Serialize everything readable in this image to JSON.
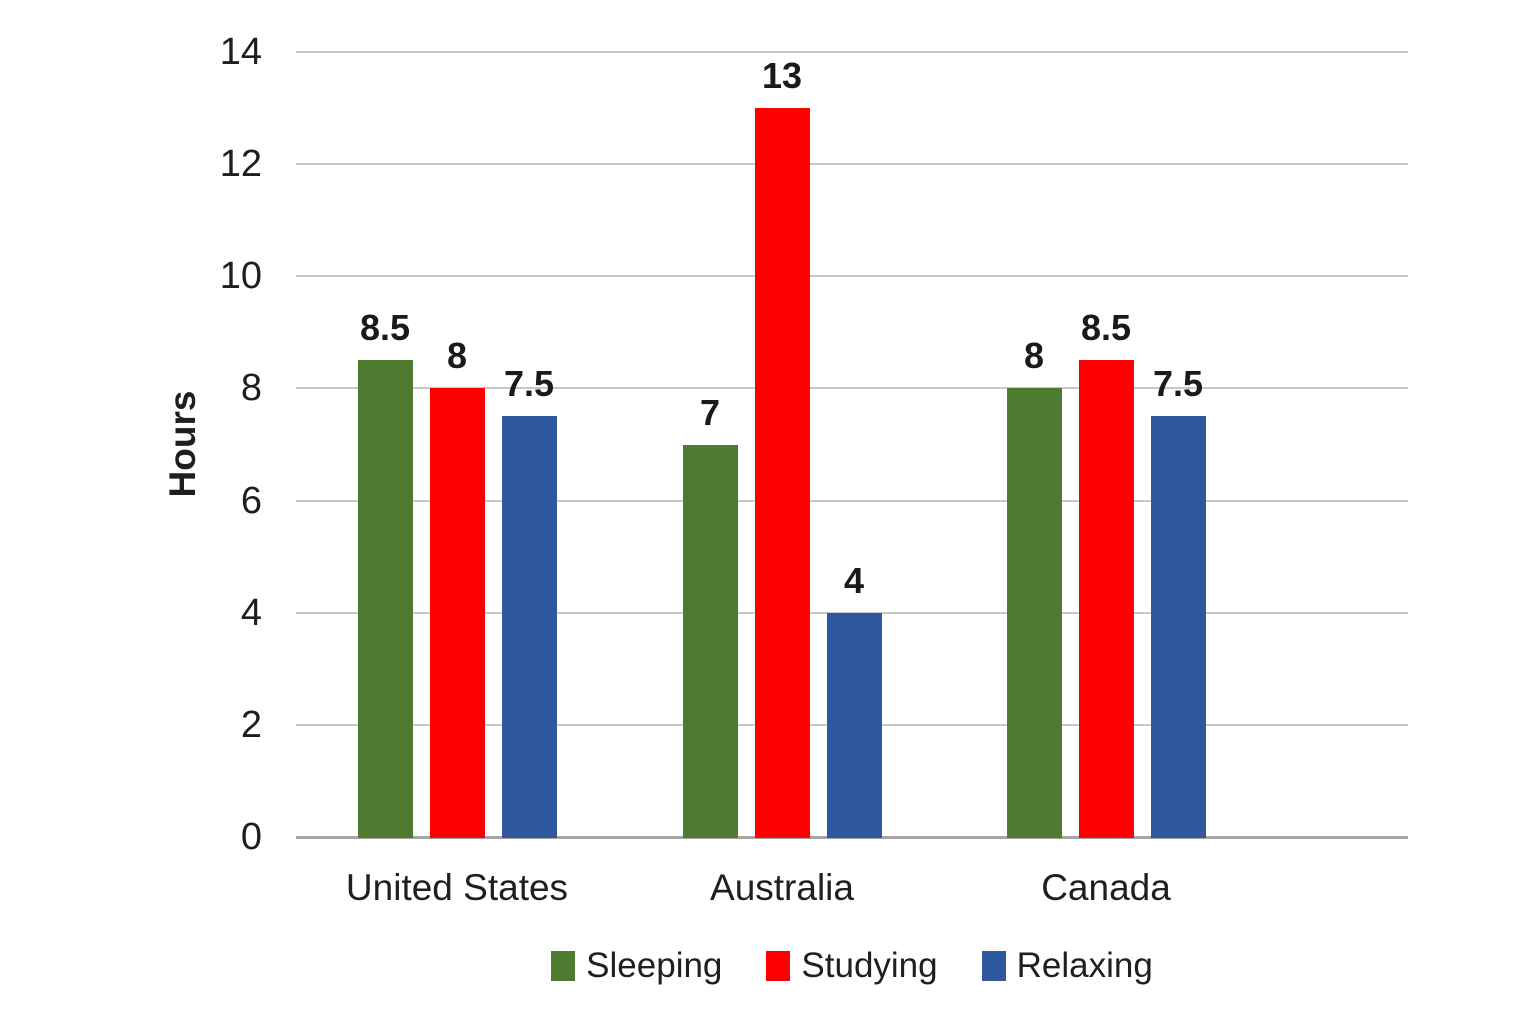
{
  "chart_data": {
    "type": "bar",
    "title": "",
    "xlabel": "",
    "ylabel": "Hours",
    "categories": [
      "United States",
      "Australia",
      "Canada"
    ],
    "series": [
      {
        "name": "Sleeping",
        "color": "#4e7b2f",
        "values": [
          8.5,
          7,
          8
        ]
      },
      {
        "name": "Studying",
        "color": "#fe0000",
        "values": [
          8,
          13,
          8.5
        ]
      },
      {
        "name": "Relaxing",
        "color": "#2e59a1",
        "values": [
          7.5,
          4,
          7.5
        ]
      }
    ],
    "ylim": [
      0,
      14
    ],
    "yticks": [
      0,
      2,
      4,
      6,
      8,
      10,
      12,
      14
    ],
    "grid": "horizontal",
    "legend_position": "bottom",
    "value_labels": true
  },
  "colors": {
    "background": "#ffffff",
    "gridline": "#c9c9c9",
    "axis_line": "#a6a6a6",
    "text": "#1f1f1f"
  }
}
